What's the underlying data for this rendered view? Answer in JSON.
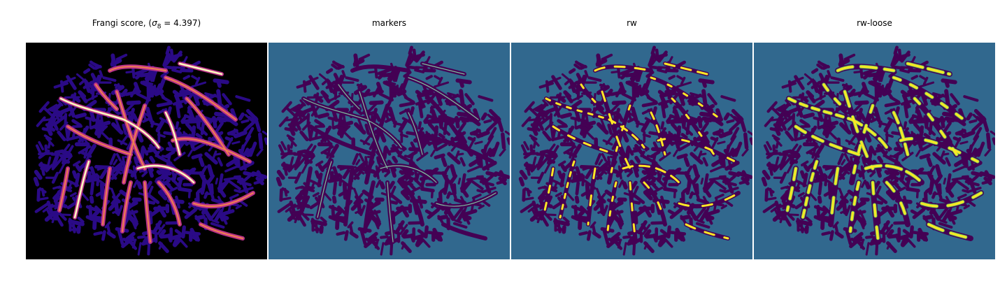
{
  "figure": {
    "panels": [
      {
        "id": "frangi",
        "title_prefix": "Frangi score, (",
        "title_sigma": "σ",
        "title_sub": "8",
        "title_suffix": " = 4.397)"
      },
      {
        "id": "markers",
        "title": "markers"
      },
      {
        "id": "rw",
        "title": "rw"
      },
      {
        "id": "rw-loose",
        "title": "rw-loose"
      }
    ],
    "colors": {
      "background_black": "#000000",
      "frangi_blob": "#2a0a86",
      "frangi_vessel_low": "#b83289",
      "frangi_vessel_high": "#fcfdbf",
      "teal": "#31688e",
      "purple": "#440154",
      "yellow": "#fde725"
    }
  }
}
